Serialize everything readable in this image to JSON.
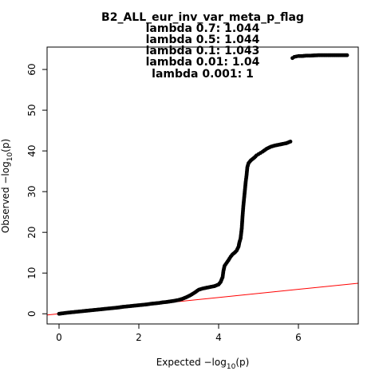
{
  "chart_data": {
    "type": "scatter",
    "title": "B2_ALL_eur_inv_var_meta_p_flag",
    "subtitle_lines": [
      "lambda 0.7: 1.044",
      "lambda 0.5: 1.044",
      "lambda 0.1: 1.043",
      "lambda 0.01: 1.04",
      "lambda 0.001: 1"
    ],
    "xlabel": {
      "prefix": "Expected  −log",
      "sub": "10",
      "suffix": "(p)"
    },
    "ylabel": {
      "prefix": "Observed  −log",
      "sub": "10",
      "suffix": "(p)"
    },
    "xlim": [
      -0.3,
      7.5
    ],
    "ylim": [
      -2.5,
      65.5
    ],
    "x_ticks": [
      0,
      2,
      4,
      6
    ],
    "y_ticks": [
      0,
      10,
      20,
      30,
      40,
      50,
      60
    ],
    "x_tick_labels": [
      "0",
      "2",
      "4",
      "6"
    ],
    "y_tick_labels": [
      "0",
      "10",
      "20",
      "30",
      "40",
      "50",
      "60"
    ],
    "grid": false,
    "reference_line": {
      "slope": 1,
      "intercept": 0,
      "color": "#ff0000"
    },
    "point_color": "#000000",
    "series": [
      {
        "points": [
          [
            0.0,
            0.0
          ],
          [
            0.1,
            0.12
          ],
          [
            0.2,
            0.25
          ],
          [
            0.3,
            0.35
          ],
          [
            0.4,
            0.45
          ],
          [
            0.5,
            0.55
          ],
          [
            0.6,
            0.65
          ],
          [
            0.7,
            0.75
          ],
          [
            0.8,
            0.85
          ],
          [
            0.9,
            0.95
          ],
          [
            1.0,
            1.05
          ],
          [
            1.1,
            1.15
          ],
          [
            1.2,
            1.25
          ],
          [
            1.3,
            1.35
          ],
          [
            1.4,
            1.45
          ],
          [
            1.5,
            1.55
          ],
          [
            1.6,
            1.7
          ],
          [
            1.7,
            1.8
          ],
          [
            1.8,
            1.9
          ],
          [
            1.9,
            2.0
          ],
          [
            2.0,
            2.1
          ],
          [
            2.1,
            2.2
          ],
          [
            2.2,
            2.3
          ],
          [
            2.3,
            2.45
          ],
          [
            2.4,
            2.55
          ],
          [
            2.5,
            2.65
          ],
          [
            2.6,
            2.8
          ],
          [
            2.7,
            2.9
          ],
          [
            2.8,
            3.05
          ],
          [
            2.9,
            3.2
          ],
          [
            3.0,
            3.4
          ],
          [
            3.1,
            3.7
          ],
          [
            3.2,
            4.1
          ],
          [
            3.3,
            4.6
          ],
          [
            3.4,
            5.2
          ],
          [
            3.5,
            5.9
          ],
          [
            3.6,
            6.2
          ],
          [
            3.7,
            6.4
          ],
          [
            3.8,
            6.6
          ],
          [
            3.9,
            6.8
          ],
          [
            4.0,
            7.2
          ],
          [
            4.05,
            7.8
          ],
          [
            4.1,
            9.0
          ],
          [
            4.12,
            10.5
          ],
          [
            4.15,
            11.8
          ],
          [
            4.2,
            12.5
          ],
          [
            4.25,
            13.2
          ],
          [
            4.3,
            14.0
          ],
          [
            4.35,
            14.6
          ],
          [
            4.4,
            15.0
          ],
          [
            4.45,
            15.5
          ],
          [
            4.5,
            16.5
          ],
          [
            4.52,
            17.5
          ],
          [
            4.55,
            18.5
          ],
          [
            4.58,
            21.0
          ],
          [
            4.6,
            24.0
          ],
          [
            4.62,
            26.5
          ],
          [
            4.64,
            28.5
          ],
          [
            4.66,
            30.5
          ],
          [
            4.68,
            32.5
          ],
          [
            4.7,
            34.0
          ],
          [
            4.72,
            36.0
          ],
          [
            4.75,
            37.0
          ],
          [
            4.8,
            37.6
          ],
          [
            4.85,
            38.0
          ],
          [
            4.9,
            38.4
          ],
          [
            4.95,
            38.9
          ],
          [
            5.0,
            39.2
          ],
          [
            5.05,
            39.5
          ],
          [
            5.1,
            39.8
          ],
          [
            5.2,
            40.5
          ],
          [
            5.3,
            41.0
          ],
          [
            5.4,
            41.3
          ],
          [
            5.5,
            41.5
          ],
          [
            5.6,
            41.7
          ],
          [
            5.7,
            41.9
          ],
          [
            5.8,
            42.3
          ],
          [
            5.85,
            62.8
          ],
          [
            5.9,
            63.1
          ],
          [
            5.95,
            63.2
          ],
          [
            6.0,
            63.3
          ],
          [
            6.1,
            63.3
          ],
          [
            6.2,
            63.4
          ],
          [
            6.3,
            63.4
          ],
          [
            6.5,
            63.5
          ],
          [
            6.75,
            63.5
          ],
          [
            7.22,
            63.5
          ]
        ]
      }
    ]
  }
}
